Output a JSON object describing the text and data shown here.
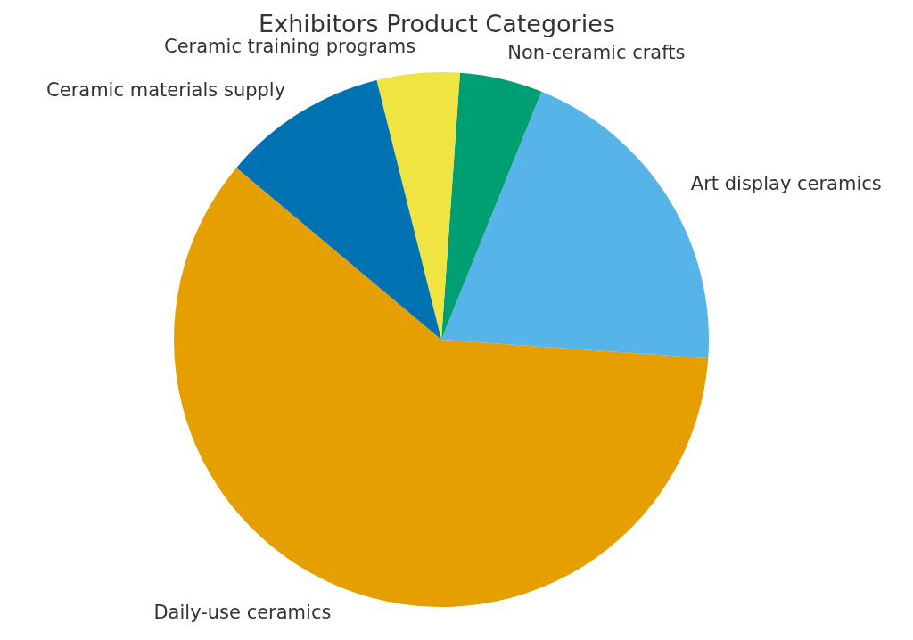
{
  "chart_data": {
    "type": "pie",
    "title": "Exhibitors Product Categories",
    "categories": [
      "Daily-use ceramics",
      "Art display ceramics",
      "Non-ceramic crafts",
      "Ceramic training programs",
      "Ceramic materials supply"
    ],
    "values": [
      60,
      20,
      5,
      5,
      10
    ],
    "colors": [
      "#e69f00",
      "#56b4e9",
      "#009e73",
      "#f0e442",
      "#0072b2"
    ]
  }
}
